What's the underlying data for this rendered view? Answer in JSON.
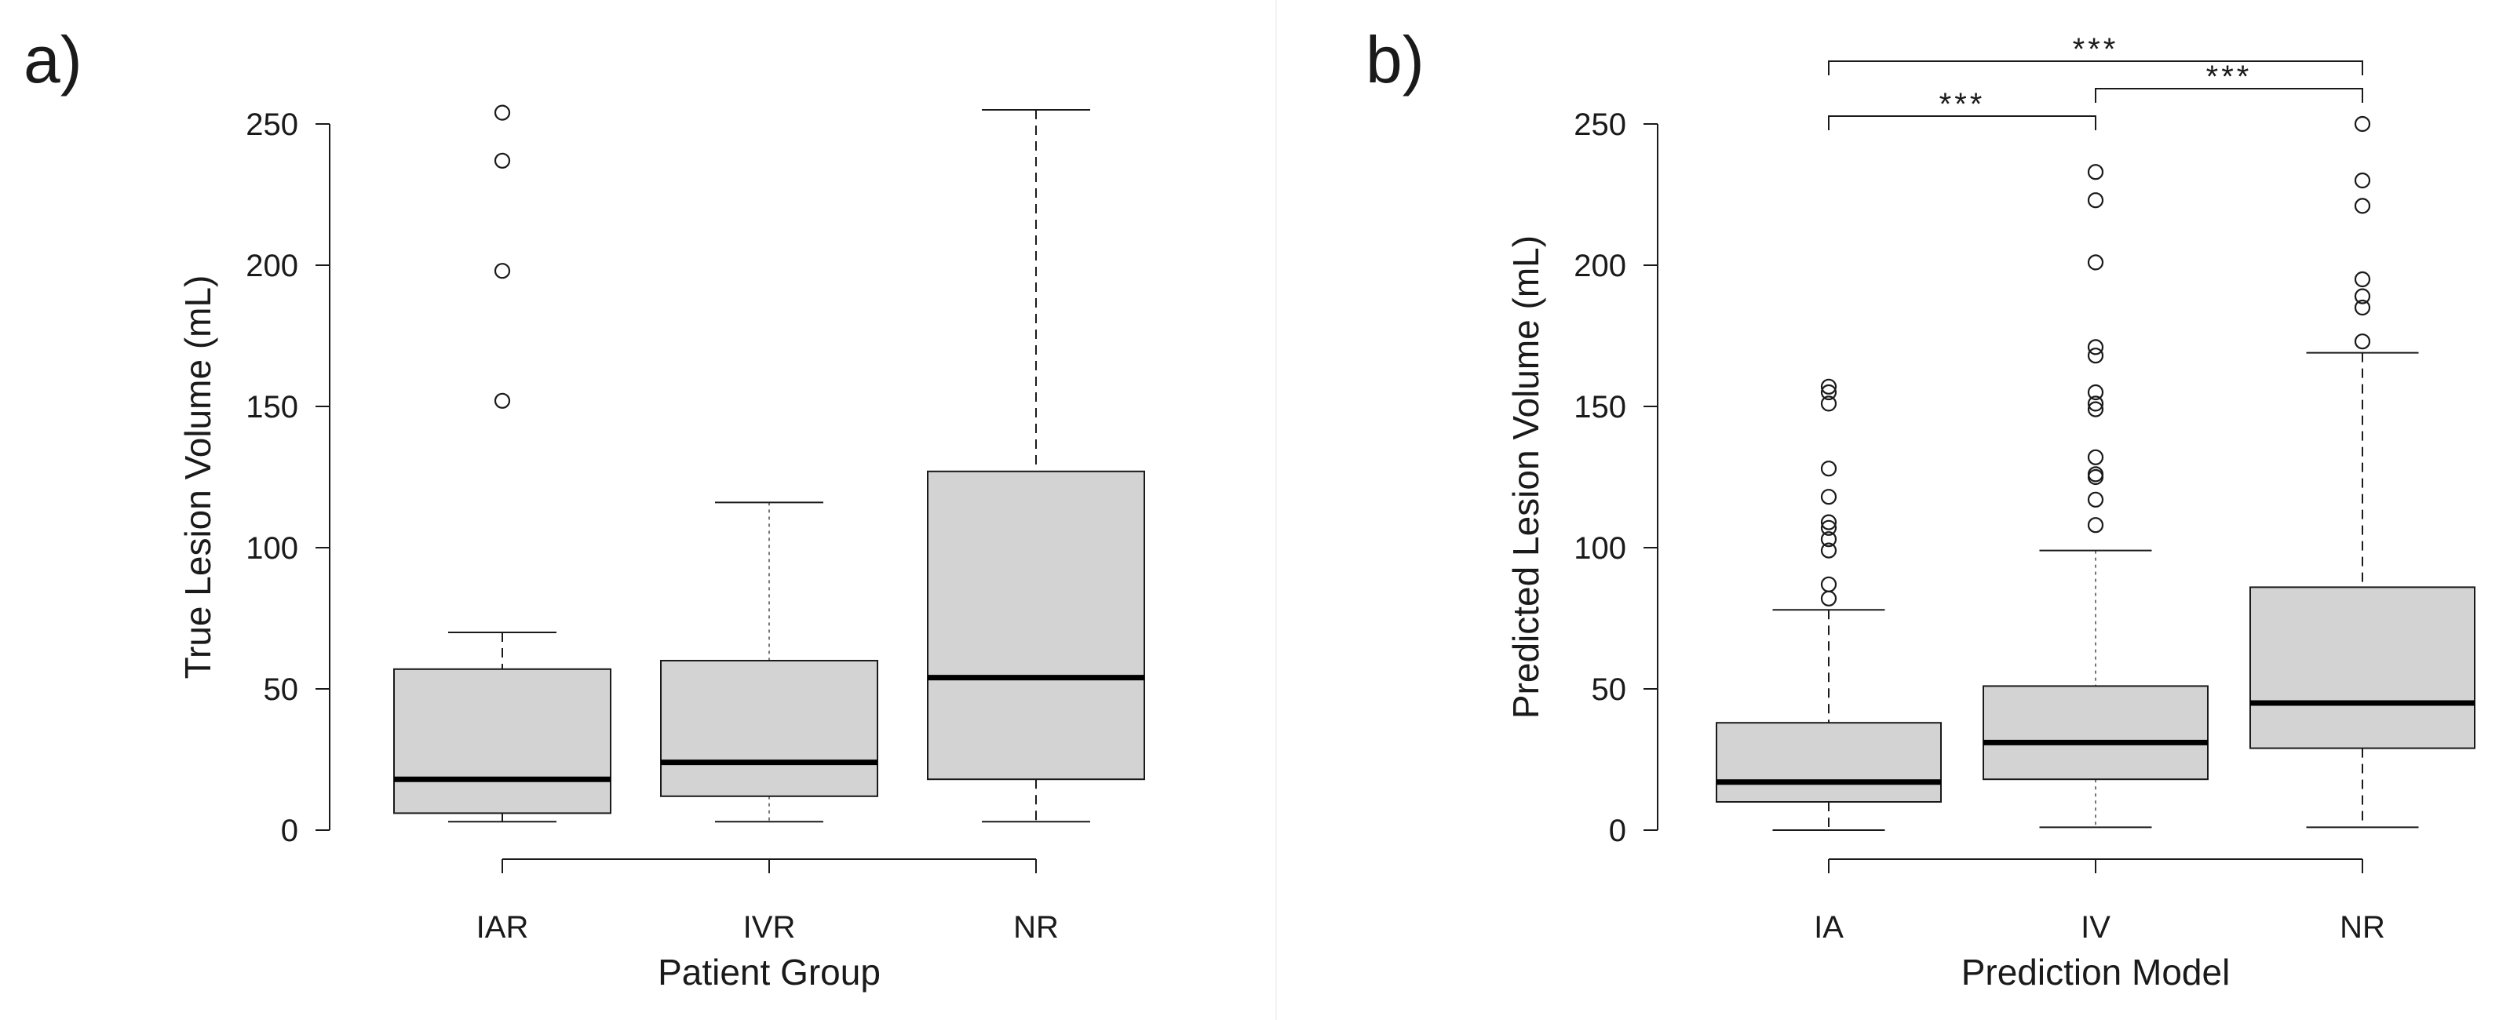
{
  "chart_data": [
    {
      "type": "boxplot",
      "panel_label": "a)",
      "title": "",
      "xlabel": "Patient Group",
      "ylabel": "True Lesion Volume (mL)",
      "ylim": [
        0,
        250
      ],
      "yticks": [
        0,
        50,
        100,
        150,
        200,
        250
      ],
      "categories": [
        "IAR",
        "IVR",
        "NR"
      ],
      "box_color": "#d3d3d3",
      "boxes": [
        {
          "name": "IAR",
          "whisker_low": 3,
          "q1": 6,
          "median": 18,
          "q3": 57,
          "whisker_high": 70,
          "outliers": [
            152,
            198,
            237,
            254
          ],
          "whisker_style": "dashed"
        },
        {
          "name": "IVR",
          "whisker_low": 3,
          "q1": 12,
          "median": 24,
          "q3": 60,
          "whisker_high": 116,
          "outliers": [],
          "whisker_style": "dotted"
        },
        {
          "name": "NR",
          "whisker_low": 3,
          "q1": 18,
          "median": 54,
          "q3": 127,
          "whisker_high": 255,
          "outliers": [],
          "whisker_style": "dashed"
        }
      ],
      "significance": []
    },
    {
      "type": "boxplot",
      "panel_label": "b)",
      "title": "",
      "xlabel": "Prediction Model",
      "ylabel": "Predicted Lesion Volume (mL)",
      "ylim": [
        0,
        250
      ],
      "yticks": [
        0,
        50,
        100,
        150,
        200,
        250
      ],
      "categories": [
        "IA",
        "IV",
        "NR"
      ],
      "box_color": "#d3d3d3",
      "boxes": [
        {
          "name": "IA",
          "whisker_low": 0,
          "q1": 10,
          "median": 17,
          "q3": 38,
          "whisker_high": 78,
          "outliers": [
            82,
            87,
            99,
            103,
            107,
            109,
            118,
            128,
            151,
            155,
            157
          ],
          "whisker_style": "dashed"
        },
        {
          "name": "IV",
          "whisker_low": 1,
          "q1": 18,
          "median": 31,
          "q3": 51,
          "whisker_high": 99,
          "outliers": [
            108,
            117,
            125,
            126,
            132,
            149,
            151,
            155,
            168,
            171,
            201,
            223,
            233
          ],
          "whisker_style": "dotted"
        },
        {
          "name": "NR",
          "whisker_low": 1,
          "q1": 29,
          "median": 45,
          "q3": 86,
          "whisker_high": 169,
          "outliers": [
            173,
            185,
            189,
            195,
            221,
            230,
            250
          ],
          "whisker_style": "dashed"
        }
      ],
      "significance": [
        {
          "from": "IA",
          "to": "NR",
          "label": "***",
          "level": 3
        },
        {
          "from": "IV",
          "to": "NR",
          "label": "***",
          "level": 2
        },
        {
          "from": "IA",
          "to": "IV",
          "label": "***",
          "level": 1
        }
      ]
    }
  ]
}
